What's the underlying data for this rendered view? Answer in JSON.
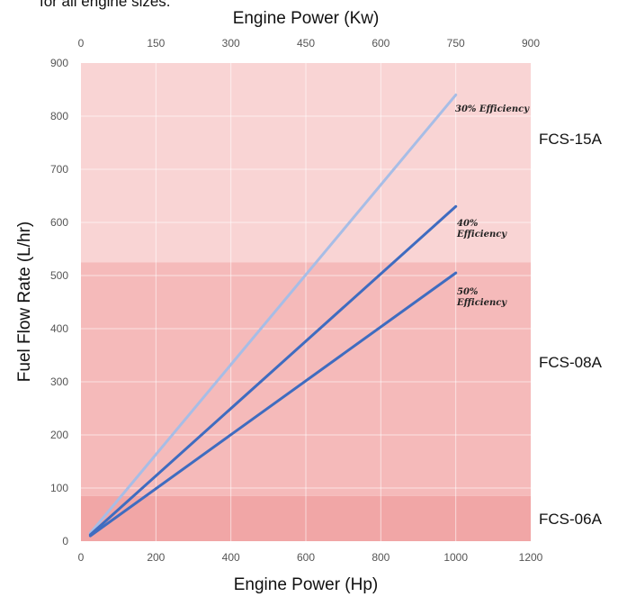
{
  "caption_fragment": "for all engine sizes.",
  "chart_data": {
    "type": "line",
    "xlabel": "Engine Power (Hp)",
    "x2label": "Engine Power (Kw)",
    "ylabel": "Fuel Flow Rate (L/hr)",
    "xlim": [
      0,
      1200
    ],
    "x2lim": [
      0,
      900
    ],
    "ylim": [
      0,
      900
    ],
    "x_ticks": [
      0,
      200,
      400,
      600,
      800,
      1000,
      1200
    ],
    "x2_ticks": [
      0,
      150,
      300,
      450,
      600,
      750,
      900
    ],
    "y_ticks": [
      0,
      100,
      200,
      300,
      400,
      500,
      600,
      700,
      800,
      900
    ],
    "grid": true,
    "bands": [
      {
        "name": "FCS-15A",
        "y_from": 525,
        "y_to": 900,
        "color": "#f9d4d4"
      },
      {
        "name": "FCS-08A",
        "y_from": 85,
        "y_to": 525,
        "color": "#f5baba"
      },
      {
        "name": "FCS-06A",
        "y_from": 0,
        "y_to": 85,
        "color": "#f1a6a6"
      }
    ],
    "series": [
      {
        "name": "30% Efficiency",
        "label_lines": [
          "30% Efficiency"
        ],
        "color": "#a7bde6",
        "x": [
          25,
          1000
        ],
        "y": [
          15,
          840
        ]
      },
      {
        "name": "40% Efficiency",
        "label_lines": [
          "40%",
          "Efficiency"
        ],
        "color": "#3f6cc0",
        "x": [
          25,
          1000
        ],
        "y": [
          12,
          630
        ]
      },
      {
        "name": "50% Efficiency",
        "label_lines": [
          "50%",
          "Efficiency"
        ],
        "color": "#3f6cc0",
        "x": [
          25,
          1000
        ],
        "y": [
          10,
          505
        ]
      }
    ]
  }
}
